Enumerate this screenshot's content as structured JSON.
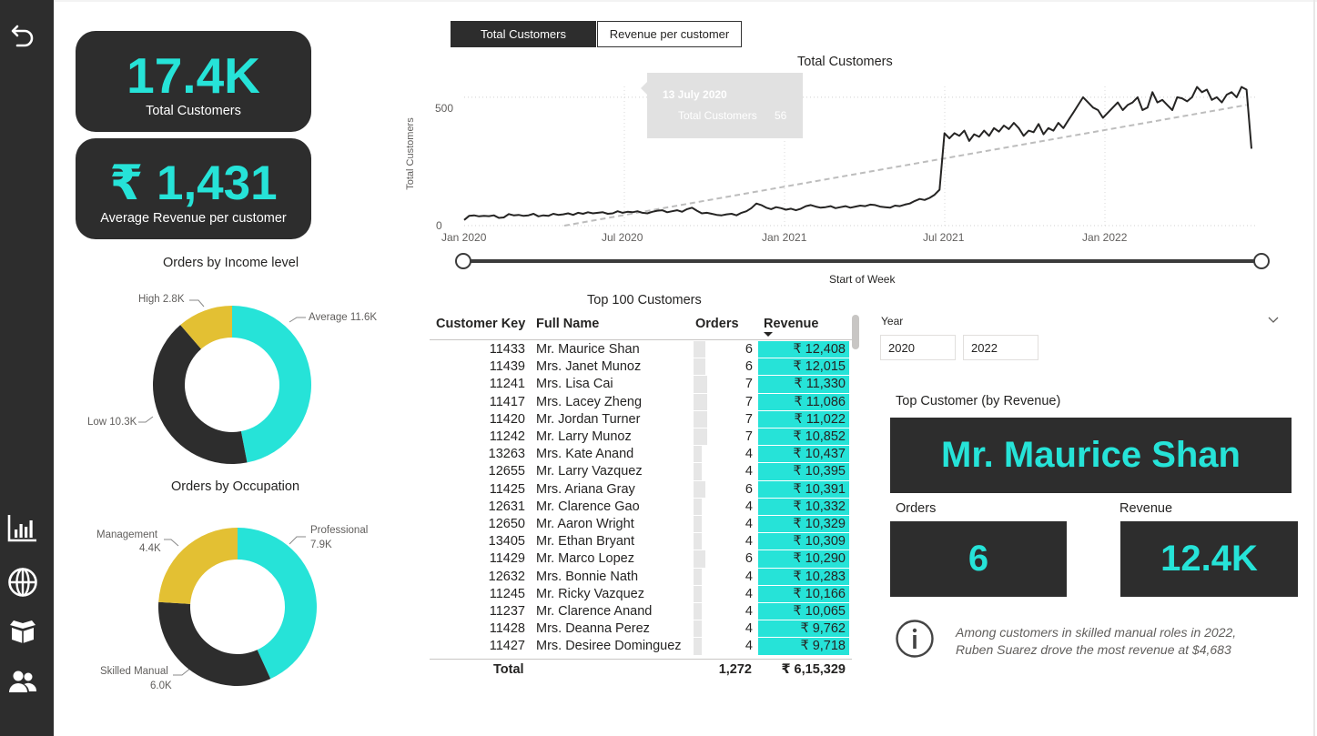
{
  "kpis": {
    "total_customers": {
      "value": "17.4K",
      "label": "Total Customers"
    },
    "avg_revenue": {
      "value": "₹ 1,431",
      "label": "Average Revenue per customer"
    }
  },
  "income_donut": {
    "title": "Orders by Income level",
    "labels": {
      "high": "High 2.8K",
      "average": "Average 11.6K",
      "low": "Low 10.3K"
    },
    "chart_data": {
      "type": "pie",
      "categories": [
        "Average",
        "Low",
        "High"
      ],
      "values": [
        11.6,
        10.3,
        2.8
      ],
      "colors": [
        "#26e3d8",
        "#2d2d2d",
        "#e3c033"
      ]
    }
  },
  "occupation_donut": {
    "title": "Orders by Occupation",
    "labels": {
      "management_1": "Management",
      "management_2": "4.4K",
      "professional_1": "Professional",
      "professional_2": "7.9K",
      "skilled_1": "Skilled Manual",
      "skilled_2": "6.0K"
    },
    "chart_data": {
      "type": "pie",
      "categories": [
        "Professional",
        "Skilled Manual",
        "Management"
      ],
      "values": [
        7.9,
        6.0,
        4.4
      ],
      "colors": [
        "#26e3d8",
        "#2d2d2d",
        "#e3c033"
      ]
    }
  },
  "tabs": {
    "total_customers": "Total Customers",
    "revenue_per_customer": "Revenue per customer"
  },
  "line_chart": {
    "title": "Total Customers",
    "ylabel": "Total Customers",
    "xlabel": "Start of Week",
    "yticks": [
      "500",
      "0"
    ],
    "xticks": [
      "Jan 2020",
      "Jul 2020",
      "Jan 2021",
      "Jul 2021",
      "Jan 2022"
    ],
    "tooltip": {
      "date": "13 July 2020",
      "label": "Total Customers",
      "value": "56"
    },
    "chart_data": {
      "type": "line",
      "x_start": "Jan 2020",
      "x_interval": "week",
      "ylim": [
        0,
        560
      ],
      "series": [
        {
          "values": [
            22,
            38,
            40,
            36,
            38,
            37,
            40,
            30,
            32,
            45,
            40,
            42,
            38,
            40,
            46,
            36,
            40,
            38,
            46,
            42,
            44,
            48,
            42,
            50,
            46,
            52,
            48,
            50,
            52,
            46,
            48,
            56,
            50,
            54,
            52,
            56,
            50,
            48,
            54,
            58,
            60,
            52,
            56,
            60,
            54,
            64,
            70,
            58,
            48,
            50,
            46,
            42,
            40,
            44,
            46,
            40,
            50,
            56,
            68,
            86,
            80,
            70,
            64,
            72,
            68,
            62,
            66,
            60,
            66,
            76,
            80,
            74,
            70,
            72,
            76,
            68,
            72,
            76,
            70,
            74,
            78,
            76,
            82,
            80,
            74,
            72,
            70,
            78,
            76,
            82,
            86,
            96,
            104,
            100,
            108,
            120,
            140,
            360,
            340,
            360,
            350,
            370,
            330,
            356,
            346,
            370,
            350,
            380,
            366,
            390,
            376,
            400,
            380,
            350,
            370,
            364,
            396,
            356,
            380,
            370,
            400,
            380,
            410,
            440,
            470,
            500,
            480,
            460,
            450,
            420,
            440,
            460,
            480,
            450,
            470,
            480,
            500,
            450,
            460,
            520,
            480,
            490,
            470,
            450,
            500,
            496,
            484,
            500,
            540,
            520,
            530,
            490,
            500,
            480,
            510,
            520,
            500,
            540,
            530,
            300
          ]
        }
      ],
      "trend": {
        "from": 0,
        "to": 470
      }
    }
  },
  "table": {
    "title": "Top 100 Customers",
    "headers": {
      "key": "Customer Key",
      "name": "Full Name",
      "orders": "Orders",
      "revenue": "Revenue"
    },
    "rows": [
      {
        "key": "11433",
        "name": "Mr. Maurice Shan",
        "orders": "6",
        "revenue": "₹ 12,408"
      },
      {
        "key": "11439",
        "name": "Mrs. Janet Munoz",
        "orders": "6",
        "revenue": "₹ 12,015"
      },
      {
        "key": "11241",
        "name": "Mrs. Lisa Cai",
        "orders": "7",
        "revenue": "₹ 11,330"
      },
      {
        "key": "11417",
        "name": "Mrs. Lacey Zheng",
        "orders": "7",
        "revenue": "₹ 11,086"
      },
      {
        "key": "11420",
        "name": "Mr. Jordan Turner",
        "orders": "7",
        "revenue": "₹ 11,022"
      },
      {
        "key": "11242",
        "name": "Mr. Larry Munoz",
        "orders": "7",
        "revenue": "₹ 10,852"
      },
      {
        "key": "13263",
        "name": "Mrs. Kate Anand",
        "orders": "4",
        "revenue": "₹ 10,437"
      },
      {
        "key": "12655",
        "name": "Mr. Larry Vazquez",
        "orders": "4",
        "revenue": "₹ 10,395"
      },
      {
        "key": "11425",
        "name": "Mrs. Ariana Gray",
        "orders": "6",
        "revenue": "₹ 10,391"
      },
      {
        "key": "12631",
        "name": "Mr. Clarence Gao",
        "orders": "4",
        "revenue": "₹ 10,332"
      },
      {
        "key": "12650",
        "name": "Mr. Aaron Wright",
        "orders": "4",
        "revenue": "₹ 10,329"
      },
      {
        "key": "13405",
        "name": "Mr. Ethan Bryant",
        "orders": "4",
        "revenue": "₹ 10,309"
      },
      {
        "key": "11429",
        "name": "Mr. Marco Lopez",
        "orders": "6",
        "revenue": "₹ 10,290"
      },
      {
        "key": "12632",
        "name": "Mrs. Bonnie Nath",
        "orders": "4",
        "revenue": "₹ 10,283"
      },
      {
        "key": "11245",
        "name": "Mr. Ricky Vazquez",
        "orders": "4",
        "revenue": "₹ 10,166"
      },
      {
        "key": "11237",
        "name": "Mr. Clarence Anand",
        "orders": "4",
        "revenue": "₹ 10,065"
      },
      {
        "key": "11428",
        "name": "Mrs. Deanna Perez",
        "orders": "4",
        "revenue": "₹ 9,762"
      },
      {
        "key": "11427",
        "name": "Mrs. Desiree Dominguez",
        "orders": "4",
        "revenue": "₹ 9,718"
      }
    ],
    "total": {
      "label": "Total",
      "orders": "1,272",
      "revenue": "₹ 6,15,329"
    }
  },
  "slicer": {
    "label": "Year",
    "from": "2020",
    "to": "2022"
  },
  "top_customer": {
    "caption": "Top Customer (by Revenue)",
    "name": "Mr. Maurice Shan",
    "orders_label": "Orders",
    "orders_value": "6",
    "revenue_label": "Revenue",
    "revenue_value": "12.4K"
  },
  "insight": {
    "line1": "Among customers in skilled manual roles in 2022,",
    "line2": "Ruben Suarez drove the most revenue at $4,683"
  },
  "colors": {
    "accent": "#26e3d8",
    "dark": "#2d2d2d",
    "gold": "#e3c033"
  }
}
